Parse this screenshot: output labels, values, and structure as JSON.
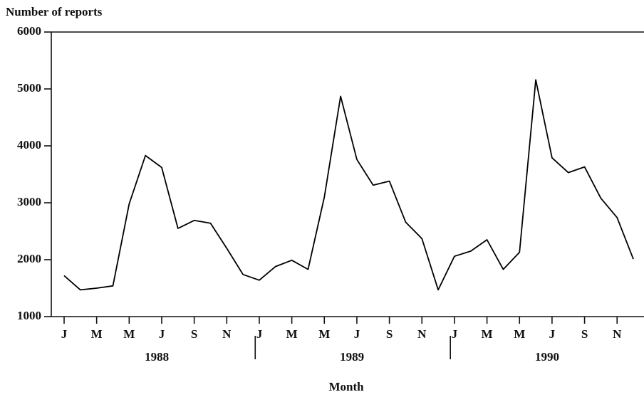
{
  "chart_data": {
    "type": "line",
    "y_label": "Number of reports",
    "x_label": "Month",
    "categories": [
      "J",
      null,
      "M",
      null,
      "M",
      null,
      "J",
      null,
      "S",
      null,
      "N",
      null,
      "J",
      null,
      "M",
      null,
      "M",
      null,
      "J",
      null,
      "S",
      null,
      "N",
      null,
      "J",
      null,
      "M",
      null,
      "M",
      null,
      "J",
      null,
      "S",
      null,
      "N",
      null
    ],
    "year_labels": [
      "1988",
      "1989",
      "1990"
    ],
    "values": [
      1720,
      1470,
      1500,
      1540,
      2980,
      3830,
      3620,
      2550,
      2690,
      2640,
      2200,
      1740,
      1640,
      1880,
      1990,
      1830,
      3100,
      4870,
      3760,
      3310,
      3380,
      2660,
      2370,
      1470,
      2060,
      2150,
      2350,
      1830,
      2130,
      5160,
      3790,
      3530,
      3630,
      3080,
      2740,
      2010
    ],
    "color": "#000000",
    "ylim": [
      1000,
      6000
    ],
    "yticks": [
      1000,
      2000,
      3000,
      4000,
      5000,
      6000
    ]
  }
}
